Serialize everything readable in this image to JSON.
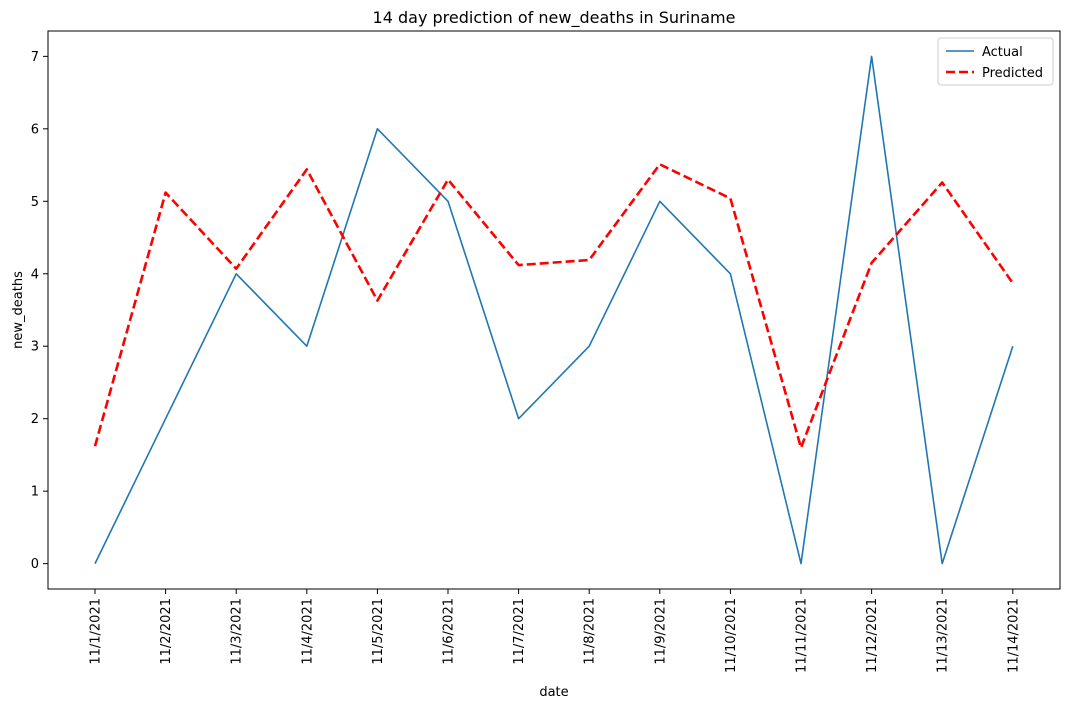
{
  "chart_data": {
    "type": "line",
    "title": "14 day prediction of new_deaths in Suriname",
    "xlabel": "date",
    "ylabel": "new_deaths",
    "categories": [
      "11/1/2021",
      "11/2/2021",
      "11/3/2021",
      "11/4/2021",
      "11/5/2021",
      "11/6/2021",
      "11/7/2021",
      "11/8/2021",
      "11/9/2021",
      "11/10/2021",
      "11/11/2021",
      "11/12/2021",
      "11/13/2021",
      "11/14/2021"
    ],
    "yticks": [
      "0",
      "1",
      "2",
      "3",
      "4",
      "5",
      "6",
      "7"
    ],
    "ylim": [
      -0.35,
      7.35
    ],
    "grid": false,
    "legend_position": "top-right",
    "series": [
      {
        "name": "Actual",
        "color": "#1f77b4",
        "style": "solid",
        "values": [
          0,
          2,
          4,
          3,
          6,
          5,
          2,
          3,
          5,
          4,
          0,
          7,
          0,
          3
        ]
      },
      {
        "name": "Predicted",
        "color": "#ff0000",
        "style": "dashed",
        "values": [
          1.62,
          5.12,
          4.07,
          5.44,
          3.63,
          5.3,
          4.12,
          4.19,
          5.51,
          5.04,
          1.6,
          4.15,
          5.26,
          3.87
        ]
      }
    ]
  }
}
